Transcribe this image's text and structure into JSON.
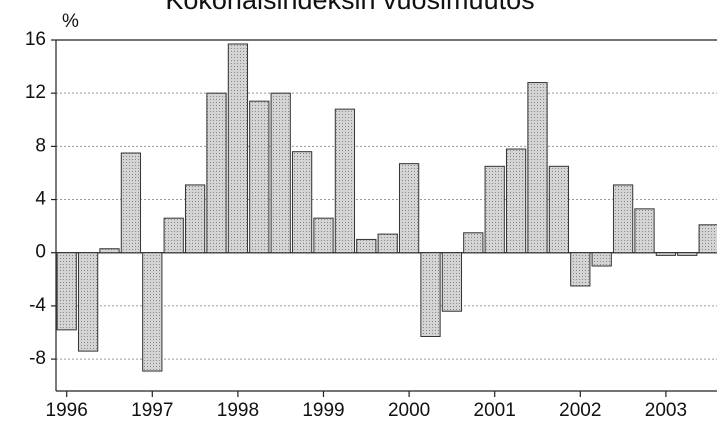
{
  "chart_data": {
    "type": "bar",
    "title": "Kokonaisindeksin vuosimuutos",
    "y_label": "%",
    "categories": [
      "1996",
      null,
      null,
      null,
      "1997",
      null,
      null,
      null,
      "1998",
      null,
      null,
      null,
      "1999",
      null,
      null,
      null,
      "2000",
      null,
      null,
      null,
      "2001",
      null,
      null,
      null,
      "2002",
      null,
      null,
      null,
      "2003",
      null,
      null
    ],
    "values": [
      -5.8,
      -7.4,
      0.3,
      7.5,
      -8.9,
      2.6,
      5.1,
      12.0,
      15.7,
      11.4,
      12.0,
      7.6,
      2.6,
      10.8,
      1.0,
      1.4,
      6.7,
      -6.3,
      -4.4,
      1.5,
      6.5,
      7.8,
      12.8,
      6.5,
      -2.5,
      -1.0,
      5.1,
      3.3,
      -0.2,
      -0.2,
      2.1
    ],
    "color": "#c8c8c8",
    "ylim": [
      -10.4,
      16
    ],
    "yticks": [
      -8,
      -4,
      0,
      4,
      8,
      12,
      16
    ],
    "grid": true
  }
}
